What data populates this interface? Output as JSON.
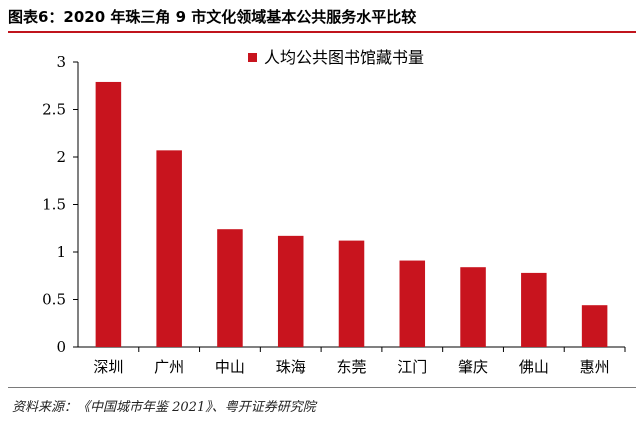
{
  "figure": {
    "title": "图表6：2020 年珠三角 9 市文化领域基本公共服务水平比较",
    "source": "资料来源：《中国城市年鉴 2021》、粤开证券研究院"
  },
  "chart_data": {
    "type": "bar",
    "categories": [
      "深圳",
      "广州",
      "中山",
      "珠海",
      "东莞",
      "江门",
      "肇庆",
      "佛山",
      "惠州"
    ],
    "series": [
      {
        "name": "人均公共图书馆藏书量",
        "values": [
          2.79,
          2.07,
          1.24,
          1.17,
          1.12,
          0.91,
          0.84,
          0.78,
          0.44
        ],
        "color": "#c8141e"
      }
    ],
    "yticks": [
      "0",
      "0.5",
      "1",
      "1.5",
      "2",
      "2.5",
      "3"
    ],
    "ylim": [
      0,
      3
    ],
    "grid": false,
    "legend_position": "top-center"
  }
}
